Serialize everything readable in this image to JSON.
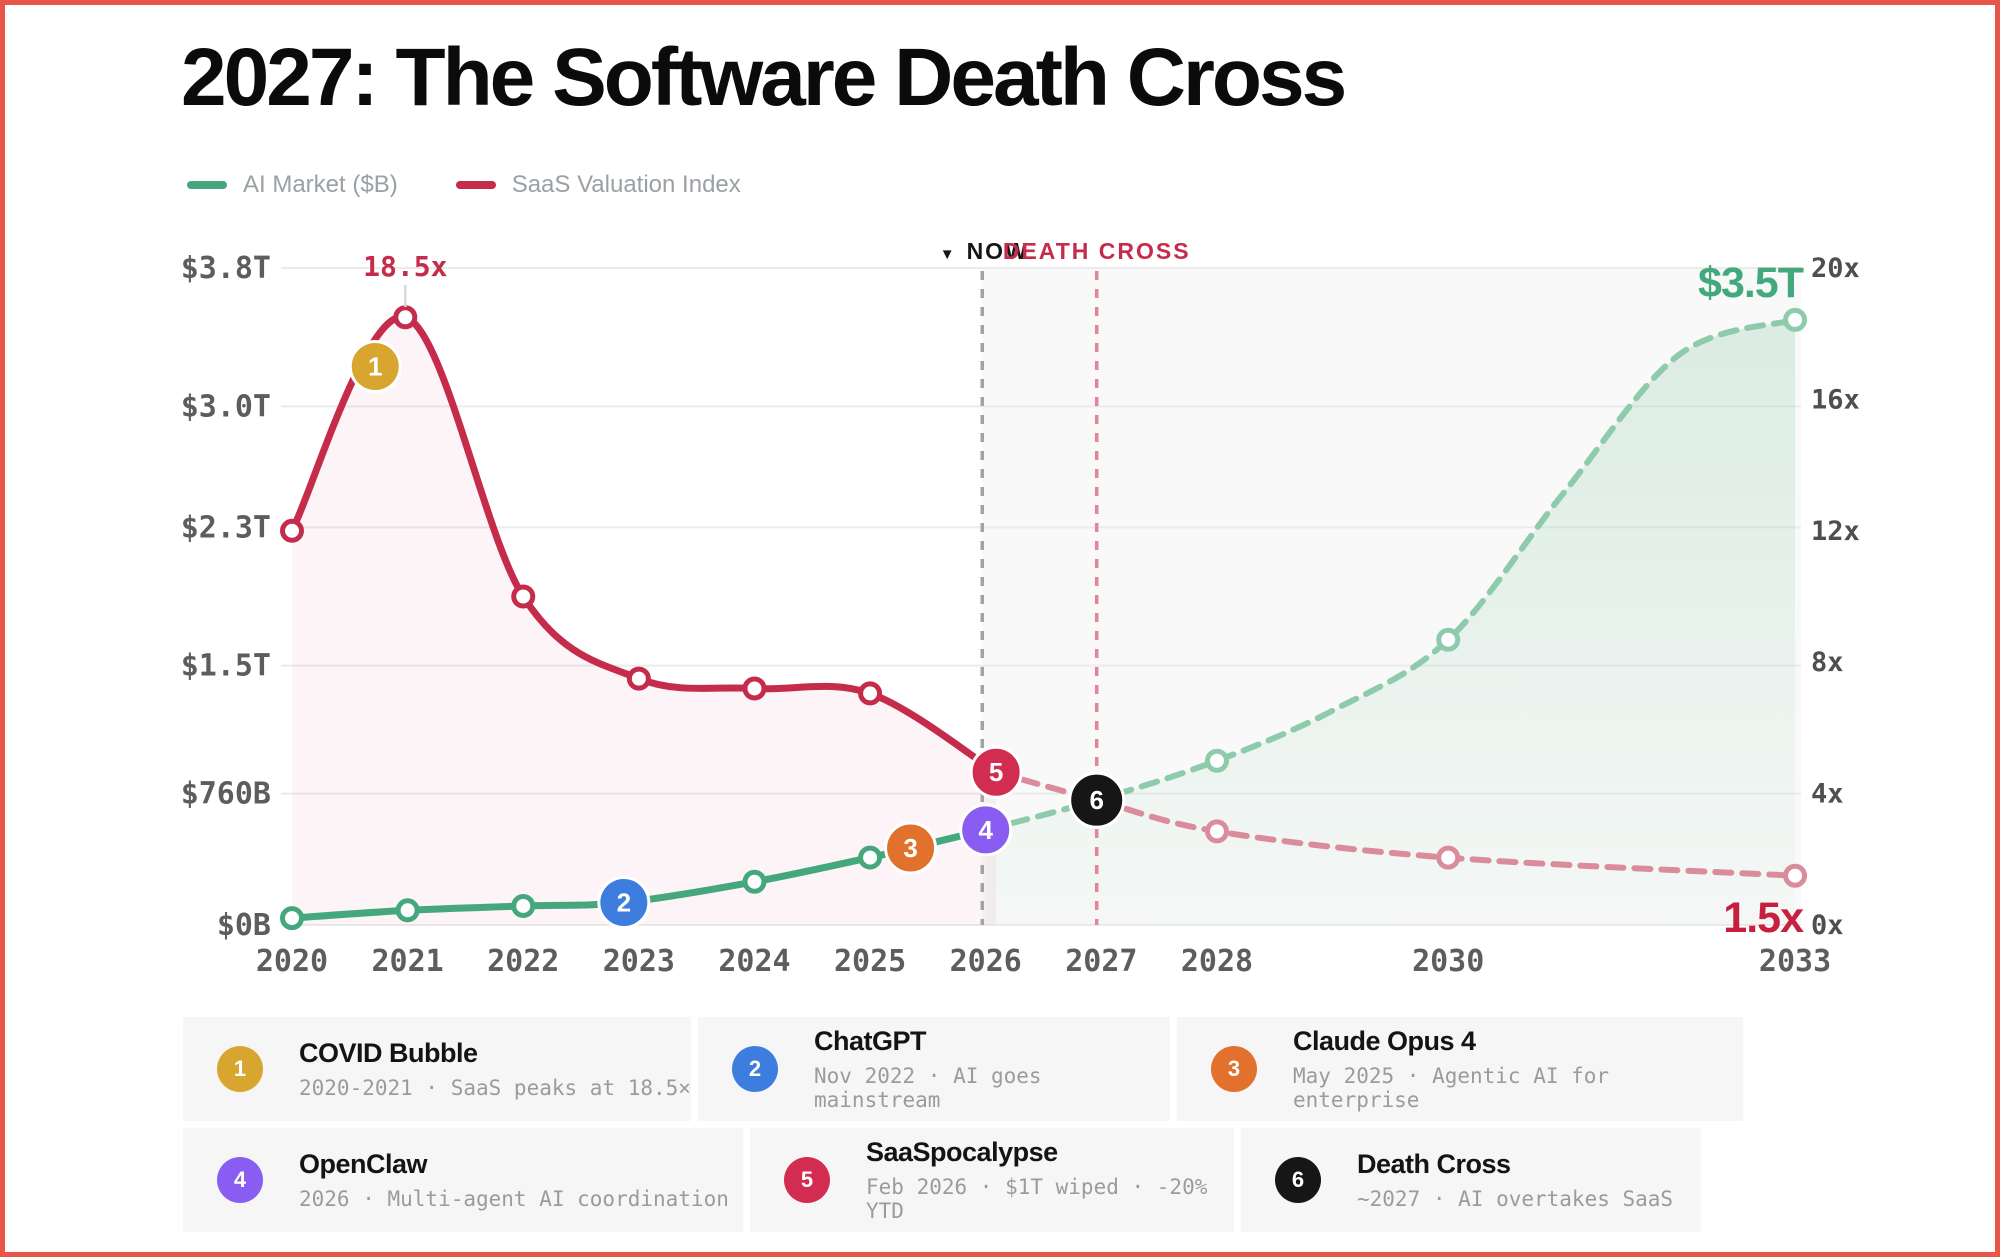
{
  "page": {
    "border_color": "#e8564a",
    "background": "#ffffff"
  },
  "title": "2027: The Software Death Cross",
  "legend": [
    {
      "label": "AI Market ($B)",
      "color": "#44a87c"
    },
    {
      "label": "SaaS Valuation Index",
      "color": "#c52b4a"
    }
  ],
  "chart_data": {
    "type": "line",
    "title": "2027: The Software Death Cross",
    "grid": true,
    "legend_position": "top-left",
    "x_axis": {
      "ticks": [
        2020,
        2021,
        2022,
        2023,
        2024,
        2025,
        2026,
        2027,
        2028,
        2030,
        2033
      ],
      "range": [
        2020,
        2033
      ]
    },
    "left_axis": {
      "title": "AI Market ($B)",
      "tick_labels": [
        "$3.8T",
        "$3.0T",
        "$2.3T",
        "$1.5T",
        "$760B",
        "$0B"
      ],
      "tick_values": [
        3800,
        3000,
        2300,
        1500,
        760,
        0
      ],
      "range": [
        0,
        3800
      ]
    },
    "right_axis": {
      "title": "SaaS Valuation Index",
      "tick_labels": [
        "20x",
        "16x",
        "12x",
        "8x",
        "4x",
        "0x"
      ],
      "tick_values": [
        20,
        16,
        12,
        8,
        4,
        0
      ],
      "range": [
        0,
        20
      ]
    },
    "series": [
      {
        "name": "AI Market ($B)",
        "axis": "left",
        "unit": "$B",
        "color": "#44a87c",
        "dash_color": "#8ecbab",
        "solid_points": [
          [
            2020,
            40
          ],
          [
            2021,
            85
          ],
          [
            2022,
            110
          ],
          [
            2022.87,
            130
          ],
          [
            2024,
            250
          ],
          [
            2025,
            390
          ],
          [
            2025.35,
            445
          ],
          [
            2026,
            550
          ]
        ],
        "solid_marker_years": [
          2020,
          2021,
          2022,
          2024,
          2025
        ],
        "dashed_points": [
          [
            2026,
            550
          ],
          [
            2026.96,
            722
          ],
          [
            2028,
            950
          ],
          [
            2029,
            1240
          ],
          [
            2030,
            1650
          ],
          [
            2031,
            2500
          ],
          [
            2032,
            3300
          ],
          [
            2033,
            3500
          ]
        ],
        "dashed_marker_years": [
          2028,
          2030,
          2033
        ],
        "end_value": 3500
      },
      {
        "name": "SaaS Valuation Index",
        "axis": "right",
        "unit": "x",
        "color": "#c52b4a",
        "dash_color": "#db8c9b",
        "solid_points": [
          [
            2020,
            12
          ],
          [
            2020.98,
            18.5
          ],
          [
            2022,
            10
          ],
          [
            2023,
            7.5
          ],
          [
            2024,
            7.2
          ],
          [
            2025,
            7.05
          ],
          [
            2026.09,
            4.65
          ]
        ],
        "solid_marker_years": [
          2020,
          2020.98,
          2022,
          2023,
          2024,
          2025
        ],
        "dashed_points": [
          [
            2026.09,
            4.65
          ],
          [
            2026.96,
            3.8
          ],
          [
            2028,
            2.85
          ],
          [
            2030,
            2.05
          ],
          [
            2033,
            1.5
          ]
        ],
        "dashed_marker_years": [
          2028,
          2030,
          2033
        ],
        "end_value": 1.5
      }
    ],
    "annotations": {
      "peak": {
        "text": "18.5x",
        "year": 2020.98,
        "color": "#c52b4a"
      },
      "now_line": {
        "marker": "▼",
        "text": "NOW",
        "year": 2025.97,
        "color": "#161616",
        "line_color": "#a3a3a3"
      },
      "cross_line": {
        "text": "DEATH CROSS",
        "year": 2026.96,
        "color": "#c52b4a",
        "line_color": "#e48595"
      },
      "green_end": {
        "text": "$3.5T",
        "color": "#42a97c"
      },
      "red_end": {
        "text": "1.5x",
        "color": "#c7203f"
      }
    }
  },
  "events": [
    {
      "num": "1",
      "color": "#d8a62e",
      "title": "COVID Bubble",
      "subtitle": "2020-2021 · SaaS peaks at 18.5×",
      "year": 2020.72,
      "axis": "right",
      "value": 17
    },
    {
      "num": "2",
      "color": "#3c7ddd",
      "title": "ChatGPT",
      "subtitle": "Nov 2022 · AI goes mainstream",
      "year": 2022.87,
      "axis": "left",
      "value": 130
    },
    {
      "num": "3",
      "color": "#e1712c",
      "title": "Claude Opus 4",
      "subtitle": "May 2025 · Agentic AI for enterprise",
      "year": 2025.35,
      "axis": "left",
      "value": 445
    },
    {
      "num": "4",
      "color": "#8a5df2",
      "title": "OpenClaw",
      "subtitle": "2026 · Multi-agent AI coordination",
      "year": 2026.0,
      "axis": "left",
      "value": 550
    },
    {
      "num": "5",
      "color": "#d22c50",
      "title": "SaaSpocalypse",
      "subtitle": "Feb 2026 · $1T wiped · -20% YTD",
      "year": 2026.09,
      "axis": "right",
      "value": 4.65
    },
    {
      "num": "6",
      "color": "#161616",
      "title": "Death Cross",
      "subtitle": "~2027 · AI overtakes SaaS",
      "year": 2026.96,
      "axis": "right",
      "value": 3.8
    }
  ]
}
